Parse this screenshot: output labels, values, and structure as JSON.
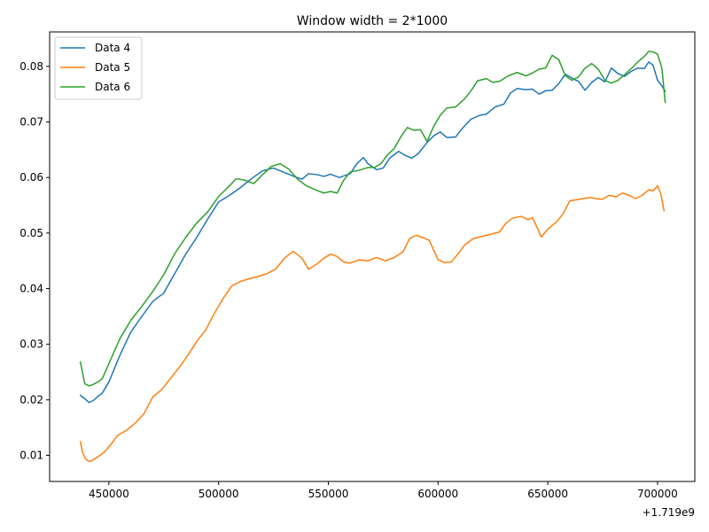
{
  "chart_data": {
    "type": "line",
    "title": "Window width = 2*1000",
    "xlabel": "",
    "ylabel": "",
    "x_offset_label": "+1.719e9",
    "xlim": [
      423000,
      717000
    ],
    "ylim": [
      0.0053,
      0.0862
    ],
    "x_ticks": [
      450000,
      500000,
      550000,
      600000,
      650000,
      700000
    ],
    "x_tick_labels": [
      "450000",
      "500000",
      "550000",
      "600000",
      "650000",
      "700000"
    ],
    "y_ticks": [
      0.01,
      0.02,
      0.03,
      0.04,
      0.05,
      0.06,
      0.07,
      0.08
    ],
    "y_tick_labels": [
      "0.01",
      "0.02",
      "0.03",
      "0.04",
      "0.05",
      "0.06",
      "0.07",
      "0.08"
    ],
    "grid": false,
    "legend": {
      "position": "top-left"
    },
    "series": [
      {
        "name": "Data 4",
        "color": "#1f77b4",
        "x": [
          437000,
          439000,
          441000,
          443000,
          445000,
          447000,
          450000,
          455000,
          460000,
          465000,
          470000,
          475000,
          480000,
          485000,
          490000,
          495000,
          500000,
          505000,
          510000,
          515000,
          520000,
          525000,
          530000,
          535000,
          538000,
          541000,
          545000,
          548000,
          551000,
          555000,
          560000,
          563000,
          566000,
          568000,
          572000,
          575000,
          578000,
          582000,
          585000,
          588000,
          591000,
          595000,
          598000,
          601000,
          604000,
          608000,
          611000,
          615000,
          619000,
          622000,
          626000,
          630000,
          633000,
          636000,
          640000,
          643000,
          646000,
          649000,
          652000,
          655000,
          658000,
          661000,
          664000,
          667000,
          670000,
          673000,
          676000,
          679000,
          682000,
          685000,
          688000,
          691000,
          694000,
          696000,
          698000,
          700000,
          702000,
          703500
        ],
        "y": [
          0.0208,
          0.0202,
          0.0195,
          0.0199,
          0.0206,
          0.0212,
          0.0232,
          0.028,
          0.0322,
          0.035,
          0.0377,
          0.0392,
          0.0427,
          0.0462,
          0.0492,
          0.0525,
          0.0556,
          0.0568,
          0.0582,
          0.0598,
          0.0612,
          0.0617,
          0.0609,
          0.0601,
          0.0597,
          0.0607,
          0.0605,
          0.0602,
          0.0606,
          0.06,
          0.0607,
          0.0625,
          0.0636,
          0.0625,
          0.0614,
          0.0617,
          0.0635,
          0.0647,
          0.064,
          0.0635,
          0.0643,
          0.0663,
          0.0675,
          0.0682,
          0.0672,
          0.0673,
          0.0688,
          0.0705,
          0.0712,
          0.0714,
          0.0727,
          0.0732,
          0.0752,
          0.076,
          0.0758,
          0.0759,
          0.075,
          0.0756,
          0.0757,
          0.0769,
          0.0786,
          0.0779,
          0.0773,
          0.0757,
          0.0771,
          0.078,
          0.0772,
          0.0797,
          0.0787,
          0.0782,
          0.0791,
          0.0797,
          0.0796,
          0.0808,
          0.0802,
          0.0775,
          0.0765,
          0.0755
        ]
      },
      {
        "name": "Data 5",
        "color": "#ff7f0e",
        "x": [
          437000,
          438000,
          439500,
          441000,
          442000,
          444000,
          446000,
          448000,
          451000,
          454000,
          458000,
          462000,
          466000,
          470000,
          474000,
          478000,
          482000,
          486000,
          490000,
          494000,
          498000,
          502000,
          506000,
          510000,
          514000,
          518000,
          522000,
          526000,
          530000,
          534000,
          538000,
          541000,
          545000,
          548000,
          551000,
          554000,
          557000,
          560000,
          564000,
          568000,
          572000,
          576000,
          580000,
          584000,
          587000,
          590000,
          593000,
          596000,
          600000,
          603000,
          606000,
          609000,
          612000,
          616000,
          620000,
          624000,
          628000,
          631000,
          634000,
          638000,
          641000,
          643000,
          645000,
          647000,
          650000,
          654000,
          657000,
          660000,
          663000,
          666000,
          669000,
          672000,
          675000,
          678000,
          681000,
          684000,
          687000,
          690000,
          693000,
          696000,
          698000,
          700000,
          701500,
          703000
        ],
        "y": [
          0.0125,
          0.0105,
          0.0093,
          0.0089,
          0.009,
          0.0095,
          0.01,
          0.0106,
          0.012,
          0.0136,
          0.0145,
          0.0158,
          0.0175,
          0.0205,
          0.0218,
          0.0238,
          0.0258,
          0.028,
          0.0305,
          0.0325,
          0.0355,
          0.0382,
          0.0405,
          0.0413,
          0.0418,
          0.0422,
          0.0427,
          0.0435,
          0.0455,
          0.0467,
          0.0455,
          0.0435,
          0.0445,
          0.0455,
          0.0462,
          0.0458,
          0.0448,
          0.0446,
          0.0452,
          0.045,
          0.0456,
          0.045,
          0.0456,
          0.0466,
          0.049,
          0.0496,
          0.0492,
          0.0487,
          0.0452,
          0.0447,
          0.0448,
          0.0462,
          0.0478,
          0.049,
          0.0494,
          0.0498,
          0.0502,
          0.0518,
          0.0527,
          0.053,
          0.0524,
          0.0528,
          0.0511,
          0.0493,
          0.0507,
          0.052,
          0.0535,
          0.0558,
          0.056,
          0.0562,
          0.0564,
          0.0562,
          0.0561,
          0.0568,
          0.0565,
          0.0572,
          0.0568,
          0.0562,
          0.0568,
          0.0578,
          0.0576,
          0.0585,
          0.0571,
          0.054
        ]
      },
      {
        "name": "Data 6",
        "color": "#2ca02c",
        "x": [
          437000,
          439000,
          441000,
          443000,
          445000,
          447000,
          450000,
          455000,
          460000,
          465000,
          470000,
          475000,
          480000,
          485000,
          490000,
          495000,
          500000,
          505000,
          508000,
          512000,
          516000,
          520000,
          524000,
          528000,
          532000,
          536000,
          540000,
          544000,
          548000,
          551000,
          554000,
          557000,
          560000,
          564000,
          568000,
          571000,
          574000,
          577000,
          580000,
          583000,
          586000,
          589000,
          592000,
          595000,
          598000,
          601000,
          604000,
          608000,
          612000,
          615000,
          618000,
          622000,
          625000,
          628000,
          632000,
          636000,
          640000,
          643000,
          646000,
          649000,
          652000,
          655000,
          658000,
          661000,
          664000,
          667000,
          670000,
          673000,
          676000,
          679000,
          682000,
          685000,
          688000,
          691000,
          694000,
          696000,
          698000,
          700000,
          702000,
          703500
        ],
        "y": [
          0.0268,
          0.0229,
          0.0225,
          0.0228,
          0.0232,
          0.0238,
          0.0265,
          0.031,
          0.0343,
          0.0368,
          0.0395,
          0.0425,
          0.0463,
          0.0492,
          0.0518,
          0.0538,
          0.0566,
          0.0585,
          0.0598,
          0.0595,
          0.0589,
          0.0605,
          0.062,
          0.0625,
          0.0615,
          0.0597,
          0.0585,
          0.0578,
          0.0572,
          0.0575,
          0.0572,
          0.0595,
          0.061,
          0.0613,
          0.0618,
          0.0618,
          0.0625,
          0.0641,
          0.0652,
          0.0673,
          0.069,
          0.0685,
          0.0686,
          0.0665,
          0.0692,
          0.0712,
          0.0725,
          0.0727,
          0.0741,
          0.0756,
          0.0774,
          0.0778,
          0.0771,
          0.0773,
          0.0783,
          0.0789,
          0.0783,
          0.0788,
          0.0795,
          0.0797,
          0.082,
          0.0812,
          0.0783,
          0.0775,
          0.0781,
          0.0797,
          0.0805,
          0.0795,
          0.0775,
          0.077,
          0.0775,
          0.0785,
          0.0796,
          0.0808,
          0.0818,
          0.0827,
          0.0826,
          0.0822,
          0.0797,
          0.0735
        ]
      }
    ]
  }
}
